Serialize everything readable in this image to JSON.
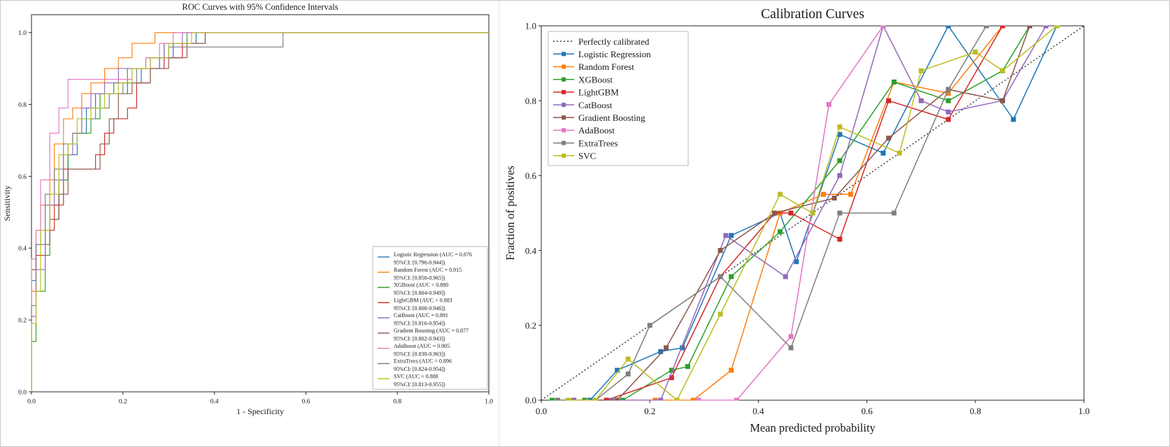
{
  "figure": {
    "background": "#ffffff",
    "border_color": "#c8c8c8"
  },
  "chart_data": [
    {
      "type": "line",
      "variant": "roc",
      "title": "ROC Curves with 95% Confidence Intervals",
      "xlabel": "1 - Specificity",
      "ylabel": "Sensitivity",
      "xlim": [
        0,
        1.0
      ],
      "ylim": [
        0,
        1.05
      ],
      "xticks": [
        0,
        0.2,
        0.4,
        0.6,
        0.8,
        1.0
      ],
      "yticks": [
        0,
        0.2,
        0.4,
        0.6,
        0.8,
        1.0
      ],
      "grid": false,
      "step": true,
      "markers": false,
      "legend_position": "lower right",
      "series": [
        {
          "name": "Logistic Regression",
          "auc": "0.876",
          "ci": "[0.796-0.944]",
          "legend_lines": [
            "Logistic Regression (AUC = 0.876",
            "95%CI: [0.796-0.944])"
          ],
          "color": "#1f77b4",
          "x": [
            0.0,
            0.01,
            0.02,
            0.04,
            0.06,
            0.08,
            0.1,
            0.12,
            0.14,
            0.21,
            0.24,
            0.28,
            0.31,
            0.36,
            0.41,
            1.0
          ],
          "y": [
            0.0,
            0.31,
            0.41,
            0.45,
            0.52,
            0.59,
            0.66,
            0.72,
            0.79,
            0.83,
            0.86,
            0.9,
            0.93,
            0.97,
            1.0,
            1.0
          ]
        },
        {
          "name": "Random Forest",
          "auc": "0.915",
          "ci": "[0.850-0.965]",
          "legend_lines": [
            "Random Forest (AUC = 0.915",
            "95%CI: [0.850-0.965])"
          ],
          "color": "#ff7f0e",
          "x": [
            0.0,
            0.01,
            0.02,
            0.04,
            0.05,
            0.07,
            0.09,
            0.11,
            0.13,
            0.16,
            0.19,
            0.22,
            0.27,
            0.42,
            1.0
          ],
          "y": [
            0.0,
            0.28,
            0.45,
            0.52,
            0.59,
            0.69,
            0.76,
            0.79,
            0.83,
            0.86,
            0.9,
            0.93,
            0.97,
            1.0,
            1.0
          ]
        },
        {
          "name": "XGBoost",
          "auc": "0.880",
          "ci": "[0.804-0.949]",
          "legend_lines": [
            "XGBoost (AUC = 0.880",
            "95%CI: [0.804-0.949])"
          ],
          "color": "#2ca02c",
          "x": [
            0.0,
            0.01,
            0.03,
            0.04,
            0.06,
            0.08,
            0.1,
            0.13,
            0.15,
            0.18,
            0.21,
            0.25,
            0.29,
            0.34,
            0.45,
            1.0
          ],
          "y": [
            0.0,
            0.14,
            0.28,
            0.38,
            0.48,
            0.59,
            0.69,
            0.72,
            0.76,
            0.83,
            0.86,
            0.9,
            0.93,
            0.97,
            1.0,
            1.0
          ]
        },
        {
          "name": "LightGBM",
          "auc": "0.883",
          "ci": "[0.808-0.946]",
          "legend_lines": [
            "LightGBM (AUC = 0.883",
            "95%CI: [0.808-0.946])"
          ],
          "color": "#d62728",
          "x": [
            0.0,
            0.01,
            0.03,
            0.05,
            0.07,
            0.1,
            0.14,
            0.16,
            0.18,
            0.21,
            0.23,
            0.26,
            0.29,
            0.33,
            0.38,
            0.44,
            1.0
          ],
          "y": [
            0.0,
            0.34,
            0.38,
            0.45,
            0.52,
            0.62,
            0.62,
            0.66,
            0.72,
            0.76,
            0.79,
            0.86,
            0.9,
            0.93,
            0.97,
            1.0,
            1.0
          ]
        },
        {
          "name": "CatBoost",
          "auc": "0.891",
          "ci": "[0.816-0.954]",
          "legend_lines": [
            "CatBoost (AUC = 0.891",
            "95%CI: [0.816-0.954])"
          ],
          "color": "#9467bd",
          "x": [
            0.0,
            0.01,
            0.03,
            0.05,
            0.07,
            0.09,
            0.11,
            0.13,
            0.16,
            0.19,
            0.21,
            0.26,
            0.29,
            0.33,
            0.4,
            1.0
          ],
          "y": [
            0.0,
            0.21,
            0.34,
            0.52,
            0.59,
            0.66,
            0.72,
            0.79,
            0.83,
            0.86,
            0.9,
            0.9,
            0.93,
            0.97,
            1.0,
            1.0
          ]
        },
        {
          "name": "Gradient Boosting",
          "auc": "0.877",
          "ci": "[0.802-0.943]",
          "legend_lines": [
            "Gradient Boosting (AUC = 0.877",
            "95%CI: [0.802-0.943])"
          ],
          "color": "#8c564b",
          "x": [
            0.0,
            0.01,
            0.04,
            0.06,
            0.08,
            0.1,
            0.15,
            0.17,
            0.19,
            0.22,
            0.26,
            0.3,
            0.34,
            0.38,
            0.47,
            1.0
          ],
          "y": [
            0.0,
            0.34,
            0.41,
            0.48,
            0.55,
            0.62,
            0.62,
            0.69,
            0.76,
            0.83,
            0.86,
            0.9,
            0.93,
            0.97,
            1.0,
            1.0
          ]
        },
        {
          "name": "AdaBoost",
          "auc": "0.905",
          "ci": "[0.830-0.963]",
          "legend_lines": [
            "AdaBoost (AUC = 0.905",
            "95%CI: [0.830-0.963])"
          ],
          "color": "#e377c2",
          "x": [
            0.0,
            0.01,
            0.02,
            0.04,
            0.06,
            0.08,
            0.1,
            0.22,
            0.25,
            0.28,
            0.31,
            0.4,
            1.0
          ],
          "y": [
            0.0,
            0.37,
            0.45,
            0.59,
            0.72,
            0.79,
            0.87,
            0.87,
            0.9,
            0.93,
            0.97,
            1.0,
            1.0
          ]
        },
        {
          "name": "ExtraTrees",
          "auc": "0.896",
          "ci": "[0.824-0.954]",
          "legend_lines": [
            "ExtraTrees (AUC = 0.896",
            "95%CI: [0.824-0.954])"
          ],
          "color": "#7f7f7f",
          "x": [
            0.0,
            0.01,
            0.03,
            0.05,
            0.07,
            0.09,
            0.11,
            0.14,
            0.17,
            0.2,
            0.23,
            0.26,
            0.3,
            0.35,
            0.55,
            0.57,
            1.0
          ],
          "y": [
            0.0,
            0.24,
            0.41,
            0.55,
            0.62,
            0.69,
            0.72,
            0.76,
            0.79,
            0.83,
            0.86,
            0.9,
            0.93,
            0.96,
            0.96,
            1.0,
            1.0
          ]
        },
        {
          "name": "SVC",
          "auc": "0.888",
          "ci": "[0.813-0.955]",
          "legend_lines": [
            "SVC (AUC = 0.888",
            "95%CI: [0.813-0.955])"
          ],
          "color": "#bcbd22",
          "x": [
            0.0,
            0.01,
            0.02,
            0.04,
            0.06,
            0.08,
            0.1,
            0.13,
            0.16,
            0.19,
            0.22,
            0.26,
            0.3,
            0.35,
            0.81,
            1.0
          ],
          "y": [
            0.0,
            0.19,
            0.28,
            0.45,
            0.55,
            0.66,
            0.69,
            0.76,
            0.79,
            0.83,
            0.86,
            0.9,
            0.93,
            0.97,
            1.0,
            1.0
          ]
        }
      ]
    },
    {
      "type": "line",
      "variant": "calibration",
      "title": "Calibration Curves",
      "xlabel": "Mean predicted probability",
      "ylabel": "Fraction of positives",
      "xlim": [
        0,
        1.0
      ],
      "ylim": [
        0,
        1.0
      ],
      "xticks": [
        0,
        0.2,
        0.4,
        0.6,
        0.8,
        1.0
      ],
      "yticks": [
        0,
        0.2,
        0.4,
        0.6,
        0.8,
        1.0
      ],
      "grid": false,
      "step": false,
      "markers": true,
      "legend_position": "upper left",
      "reference": {
        "name": "Perfectly calibrated",
        "color": "#3a3a3a",
        "dash": "2,3",
        "x": [
          0,
          1
        ],
        "y": [
          0,
          1
        ]
      },
      "series": [
        {
          "name": "Logistic Regression",
          "color": "#1f77b4",
          "x": [
            0.06,
            0.09,
            0.14,
            0.22,
            0.26,
            0.35,
            0.44,
            0.47,
            0.55,
            0.63,
            0.75,
            0.87,
            0.95
          ],
          "y": [
            0.0,
            0.0,
            0.08,
            0.13,
            0.14,
            0.44,
            0.5,
            0.37,
            0.71,
            0.66,
            1.0,
            0.75,
            1.0
          ]
        },
        {
          "name": "Random Forest",
          "color": "#ff7f0e",
          "x": [
            0.03,
            0.08,
            0.14,
            0.21,
            0.28,
            0.35,
            0.44,
            0.52,
            0.57,
            0.65,
            0.75,
            0.85
          ],
          "y": [
            0.0,
            0.0,
            0.0,
            0.0,
            0.0,
            0.08,
            0.5,
            0.55,
            0.55,
            0.85,
            0.82,
            1.0
          ]
        },
        {
          "name": "XGBoost",
          "color": "#2ca02c",
          "x": [
            0.02,
            0.08,
            0.15,
            0.24,
            0.27,
            0.35,
            0.44,
            0.55,
            0.65,
            0.75,
            0.85,
            0.9
          ],
          "y": [
            0.0,
            0.0,
            0.0,
            0.08,
            0.09,
            0.33,
            0.45,
            0.64,
            0.85,
            0.8,
            0.88,
            1.0
          ]
        },
        {
          "name": "LightGBM",
          "color": "#d62728",
          "x": [
            0.05,
            0.12,
            0.24,
            0.33,
            0.43,
            0.46,
            0.55,
            0.64,
            0.75,
            0.85
          ],
          "y": [
            0.0,
            0.0,
            0.06,
            0.33,
            0.5,
            0.5,
            0.43,
            0.8,
            0.75,
            1.0
          ]
        },
        {
          "name": "CatBoost",
          "color": "#9467bd",
          "x": [
            0.06,
            0.13,
            0.22,
            0.34,
            0.45,
            0.55,
            0.63,
            0.7,
            0.75,
            0.85,
            0.93
          ],
          "y": [
            0.0,
            0.0,
            0.0,
            0.44,
            0.33,
            0.6,
            1.0,
            0.8,
            0.77,
            0.8,
            1.0
          ]
        },
        {
          "name": "Gradient Boosting",
          "color": "#8c564b",
          "x": [
            0.05,
            0.14,
            0.23,
            0.33,
            0.43,
            0.54,
            0.64,
            0.75,
            0.85,
            0.9
          ],
          "y": [
            0.0,
            0.0,
            0.14,
            0.4,
            0.5,
            0.54,
            0.7,
            0.83,
            0.8,
            1.0
          ]
        },
        {
          "name": "AdaBoost",
          "color": "#e377c2",
          "x": [
            0.29,
            0.36,
            0.46,
            0.53,
            0.63
          ],
          "y": [
            0.0,
            0.0,
            0.17,
            0.79,
            1.0
          ]
        },
        {
          "name": "ExtraTrees",
          "color": "#7f7f7f",
          "x": [
            0.03,
            0.1,
            0.16,
            0.2,
            0.33,
            0.46,
            0.55,
            0.65,
            0.75,
            0.82
          ],
          "y": [
            0.0,
            0.0,
            0.07,
            0.2,
            0.33,
            0.14,
            0.5,
            0.5,
            0.83,
            1.0
          ]
        },
        {
          "name": "SVC",
          "color": "#bcbd22",
          "x": [
            0.05,
            0.1,
            0.16,
            0.25,
            0.33,
            0.44,
            0.5,
            0.55,
            0.66,
            0.7,
            0.8,
            0.85,
            0.95
          ],
          "y": [
            0.0,
            0.0,
            0.11,
            0.0,
            0.23,
            0.55,
            0.5,
            0.73,
            0.66,
            0.88,
            0.93,
            0.88,
            1.0
          ]
        }
      ]
    }
  ]
}
